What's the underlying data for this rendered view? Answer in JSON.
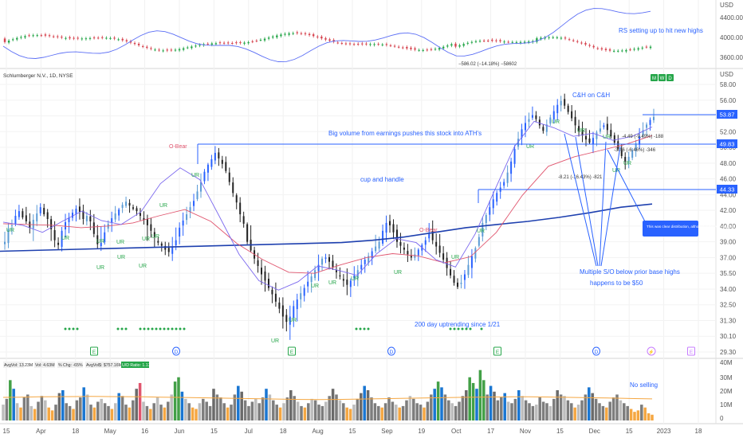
{
  "chart_data": {
    "type": "candlestick",
    "symbol_title": "Schlumberger N.V., 1D, NYSE",
    "currency": "USD",
    "x_labels": [
      "15",
      "Apr",
      "18",
      "May",
      "16",
      "Jun",
      "15",
      "Jul",
      "18",
      "Aug",
      "15",
      "Sep",
      "19",
      "Oct",
      "17",
      "Nov",
      "15",
      "Dec",
      "15",
      "2023",
      "18"
    ],
    "price_axis": {
      "ticks": [
        "58.00",
        "56.00",
        "54.00",
        "52.00",
        "50.00",
        "48.00",
        "46.00",
        "44.00",
        "42.00",
        "40.00",
        "39.00",
        "37.00",
        "35.50",
        "34.00",
        "32.50",
        "31.30",
        "30.10",
        "29.30"
      ],
      "unit": "USD",
      "price_labels": [
        {
          "value": "53.87",
          "color": "#2962ff"
        },
        {
          "value": "49.83",
          "color": "#2962ff"
        },
        {
          "value": "44.33",
          "color": "#2962ff"
        }
      ]
    },
    "horizontal_levels": [
      49.83,
      44.33,
      53.87
    ],
    "approx_closes": [
      39.0,
      39.8,
      40.1,
      41.3,
      41.9,
      41.1,
      40.6,
      39.9,
      40.8,
      41.6,
      42.4,
      41.5,
      40.9,
      39.8,
      39.1,
      38.6,
      39.7,
      40.5,
      41.1,
      41.7,
      42.2,
      41.8,
      40.9,
      41.3,
      40.6,
      39.5,
      38.7,
      38.9,
      39.6,
      40.3,
      41.0,
      41.6,
      42.1,
      42.7,
      43.1,
      42.6,
      42.2,
      41.9,
      41.3,
      40.8,
      40.1,
      39.7,
      39.3,
      38.9,
      38.5,
      38.0,
      37.7,
      38.3,
      39.1,
      39.9,
      40.7,
      41.5,
      42.4,
      43.2,
      44.4,
      45.6,
      46.9,
      47.8,
      48.5,
      49.3,
      48.6,
      47.9,
      47.0,
      45.6,
      44.2,
      43.0,
      41.5,
      40.3,
      39.0,
      37.9,
      36.9,
      36.2,
      35.4,
      34.8,
      34.1,
      33.5,
      32.8,
      32.2,
      31.6,
      31.2,
      31.6,
      32.4,
      33.0,
      33.6,
      34.1,
      34.7,
      35.2,
      35.8,
      36.3,
      36.9,
      37.0,
      36.6,
      36.1,
      35.6,
      35.2,
      34.8,
      34.4,
      34.8,
      35.3,
      35.8,
      36.3,
      36.8,
      37.2,
      37.8,
      38.4,
      39.0,
      39.7,
      40.4,
      40.1,
      39.6,
      39.0,
      38.5,
      38.0,
      37.4,
      37.0,
      37.4,
      38.0,
      38.6,
      39.1,
      39.5,
      39.1,
      38.4,
      37.6,
      36.8,
      36.0,
      35.3,
      34.6,
      34.2,
      34.6,
      35.4,
      36.3,
      37.2,
      38.2,
      39.3,
      40.4,
      41.4,
      42.4,
      43.4,
      44.2,
      44.9,
      45.6,
      46.8,
      48.2,
      49.8,
      51.1,
      52.3,
      53.1,
      53.6,
      54.1,
      53.6,
      52.8,
      52.1,
      52.9,
      53.8,
      54.6,
      55.4,
      55.9,
      55.3,
      54.5,
      53.7,
      52.8,
      52.1,
      51.5,
      51.0,
      50.6,
      51.2,
      51.9,
      52.4,
      52.8,
      52.2,
      51.4,
      50.6,
      49.8,
      48.9,
      48.2,
      48.8,
      49.6,
      50.5,
      51.4,
      52.2,
      52.9,
      53.5,
      53.87
    ],
    "moving_averages": [
      {
        "name": "200 day",
        "color": "#1e40af",
        "values": [
          37.8,
          37.9,
          38.0,
          38.1,
          38.2,
          38.3,
          38.4,
          38.5,
          38.6,
          38.7,
          38.8,
          38.9,
          39.1,
          39.3,
          39.6,
          39.9,
          40.2,
          40.6,
          41.1,
          41.7,
          42.4,
          42.8
        ]
      },
      {
        "name": "50 day",
        "color": "#e0556e",
        "values": [
          40.3,
          40.2,
          40.1,
          39.9,
          40.0,
          40.4,
          41.3,
          42.1,
          40.6,
          38.8,
          36.8,
          35.6,
          35.5,
          36.3,
          37.0,
          37.5,
          37.2,
          36.5,
          37.1,
          39.6,
          43.9,
          47.6,
          48.8,
          49.6,
          50.4,
          51.5
        ]
      },
      {
        "name": "21 day",
        "color": "#7b68ee",
        "values": [
          40.5,
          40.1,
          39.6,
          40.6,
          41.9,
          40.7,
          40.2,
          41.8,
          45.4,
          47.4,
          45.9,
          41.2,
          37.4,
          34.8,
          33.9,
          34.7,
          36.2,
          35.8,
          35.3,
          37.5,
          39.2,
          38.9,
          36.8,
          36.1,
          39.5,
          44.6,
          50.1,
          53.3,
          52.5,
          51.4,
          51.8,
          50.9,
          51.4,
          52.6
        ]
      }
    ],
    "annotations": [
      "C&H on C&H",
      "Big volume from earnings pushes this stock into ATH's",
      "cup and handle",
      "O-Bear",
      "O-Bear",
      "-8.21 (-16.43%) -821",
      "-4.49 (-9.49%) -188",
      "-3.46 (-6.46%) -346",
      "This was clear distribution, although it recovers quickly",
      "Multiple S/O below prior base highs",
      "happens to be $50",
      "200 day uptrending since 1/21"
    ],
    "ur_label": "UR",
    "event_markers": [
      "E",
      "D",
      "E",
      "D",
      "E",
      "D",
      "E"
    ],
    "event_marker_extra": "⚡",
    "mwd_buttons": [
      "M",
      "W",
      "D"
    ],
    "top_panel": {
      "axis_ticks": [
        "USD",
        "4400.00",
        "4000.00",
        "3600.00"
      ],
      "annotation": "RS setting up to hit new highs",
      "measure_label": "−586.02 (−14.18%) −58602"
    },
    "volume_panel": {
      "stats": [
        "AvgVol: 13.23M",
        "Vol: 4.63M",
        "% Chg: -65%",
        "AvgVol$: $757.16M",
        "U/D Ratio: 1.17"
      ],
      "axis_ticks": [
        "40M",
        "30M",
        "20M",
        "10M",
        "0"
      ],
      "annotation": "No selling",
      "values": [
        11,
        15,
        28,
        22,
        12,
        9,
        16,
        18,
        10,
        8,
        13,
        17,
        14,
        9,
        7,
        11,
        19,
        21,
        12,
        10,
        8,
        14,
        16,
        23,
        18,
        11,
        9,
        13,
        15,
        12,
        10,
        8,
        12,
        19,
        17,
        11,
        9,
        14,
        22,
        26,
        13,
        10,
        8,
        12,
        16,
        11,
        9,
        13,
        18,
        27,
        30,
        20,
        15,
        12,
        9,
        8,
        12,
        15,
        13,
        10,
        22,
        18,
        16,
        12,
        9,
        11,
        18,
        24,
        20,
        14,
        10,
        13,
        15,
        12,
        16,
        22,
        18,
        14,
        11,
        9,
        12,
        16,
        21,
        17,
        13,
        10,
        9,
        12,
        15,
        14,
        11,
        10,
        13,
        17,
        22,
        18,
        14,
        12,
        9,
        8,
        11,
        15,
        19,
        24,
        21,
        16,
        12,
        10,
        9,
        12,
        16,
        13,
        11,
        9,
        10,
        14,
        17,
        15,
        12,
        11,
        9,
        13,
        18,
        22,
        27,
        23,
        18,
        14,
        12,
        10,
        13,
        17,
        21,
        30,
        26,
        22,
        35,
        28,
        18,
        24,
        20,
        14,
        16,
        19,
        13,
        12,
        15,
        21,
        17,
        14,
        12,
        10,
        11,
        16,
        13,
        12,
        10,
        15,
        21,
        18,
        17,
        14,
        12,
        9,
        11,
        14,
        18,
        23,
        19,
        15,
        12,
        10,
        9,
        13,
        16,
        18,
        14,
        12,
        10,
        8,
        6,
        7,
        11,
        9,
        5,
        4
      ],
      "avg": [
        16,
        16.2,
        16.4,
        16.5,
        16.6,
        16.7,
        16.6,
        16.5,
        16.4,
        16.2,
        16.0,
        15.8,
        15.6,
        15.4,
        15.2,
        15.0,
        14.8,
        14.6,
        14.5,
        14.6,
        14.8,
        15.0,
        15.2,
        15.4,
        15.6,
        15.8,
        16.0,
        16.2,
        16.3,
        16.4,
        16.4,
        16.3,
        16.1,
        15.9,
        15.7,
        15.5,
        15.2,
        15.0
      ]
    }
  }
}
